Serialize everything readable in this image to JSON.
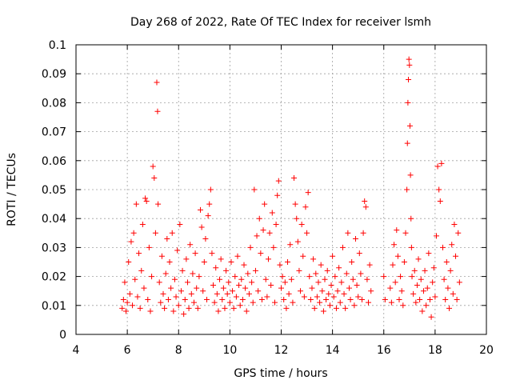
{
  "chart_data": {
    "type": "scatter",
    "title": "Day 268 of 2022, Rate Of TEC Index for receiver lsmh",
    "xlabel": "GPS time / hours",
    "ylabel": "ROTI / TECUs",
    "xlim": [
      4,
      20
    ],
    "ylim": [
      0,
      0.1
    ],
    "xticks": [
      "4",
      "6",
      "8",
      "10",
      "12",
      "14",
      "16",
      "18",
      "20"
    ],
    "yticks": [
      "0",
      "0.01",
      "0.02",
      "0.03",
      "0.04",
      "0.05",
      "0.06",
      "0.07",
      "0.08",
      "0.09",
      "0.1"
    ],
    "grid": true,
    "marker": "+",
    "color": "#ff0000",
    "series": [
      {
        "name": "ROTI",
        "points": [
          [
            5.8,
            0.009
          ],
          [
            5.85,
            0.012
          ],
          [
            5.9,
            0.018
          ],
          [
            5.95,
            0.008
          ],
          [
            6.0,
            0.011
          ],
          [
            6.05,
            0.025
          ],
          [
            6.1,
            0.014
          ],
          [
            6.15,
            0.032
          ],
          [
            6.2,
            0.01
          ],
          [
            6.25,
            0.035
          ],
          [
            6.3,
            0.019
          ],
          [
            6.35,
            0.045
          ],
          [
            6.4,
            0.013
          ],
          [
            6.45,
            0.028
          ],
          [
            6.5,
            0.009
          ],
          [
            6.55,
            0.022
          ],
          [
            6.6,
            0.038
          ],
          [
            6.65,
            0.016
          ],
          [
            6.7,
            0.047
          ],
          [
            6.75,
            0.046
          ],
          [
            6.8,
            0.012
          ],
          [
            6.85,
            0.03
          ],
          [
            6.9,
            0.008
          ],
          [
            6.95,
            0.02
          ],
          [
            7.0,
            0.058
          ],
          [
            7.05,
            0.054
          ],
          [
            7.1,
            0.035
          ],
          [
            7.15,
            0.087
          ],
          [
            7.18,
            0.077
          ],
          [
            7.2,
            0.045
          ],
          [
            7.25,
            0.018
          ],
          [
            7.3,
            0.011
          ],
          [
            7.35,
            0.027
          ],
          [
            7.4,
            0.014
          ],
          [
            7.45,
            0.009
          ],
          [
            7.5,
            0.021
          ],
          [
            7.55,
            0.033
          ],
          [
            7.6,
            0.012
          ],
          [
            7.65,
            0.025
          ],
          [
            7.7,
            0.016
          ],
          [
            7.75,
            0.035
          ],
          [
            7.8,
            0.008
          ],
          [
            7.85,
            0.019
          ],
          [
            7.9,
            0.013
          ],
          [
            7.95,
            0.029
          ],
          [
            8.0,
            0.01
          ],
          [
            8.05,
            0.038
          ],
          [
            8.1,
            0.015
          ],
          [
            8.15,
            0.022
          ],
          [
            8.2,
            0.007
          ],
          [
            8.25,
            0.012
          ],
          [
            8.3,
            0.026
          ],
          [
            8.35,
            0.018
          ],
          [
            8.4,
            0.009
          ],
          [
            8.45,
            0.031
          ],
          [
            8.5,
            0.014
          ],
          [
            8.55,
            0.021
          ],
          [
            8.6,
            0.011
          ],
          [
            8.65,
            0.028
          ],
          [
            8.7,
            0.016
          ],
          [
            8.75,
            0.009
          ],
          [
            8.8,
            0.02
          ],
          [
            8.85,
            0.043
          ],
          [
            8.9,
            0.037
          ],
          [
            8.95,
            0.015
          ],
          [
            9.0,
            0.025
          ],
          [
            9.05,
            0.033
          ],
          [
            9.1,
            0.012
          ],
          [
            9.15,
            0.041
          ],
          [
            9.2,
            0.045
          ],
          [
            9.25,
            0.05
          ],
          [
            9.3,
            0.028
          ],
          [
            9.35,
            0.017
          ],
          [
            9.4,
            0.011
          ],
          [
            9.45,
            0.023
          ],
          [
            9.5,
            0.014
          ],
          [
            9.55,
            0.008
          ],
          [
            9.6,
            0.019
          ],
          [
            9.65,
            0.026
          ],
          [
            9.7,
            0.012
          ],
          [
            9.75,
            0.016
          ],
          [
            9.8,
            0.009
          ],
          [
            9.85,
            0.022
          ],
          [
            9.9,
            0.014
          ],
          [
            9.95,
            0.018
          ],
          [
            10.0,
            0.011
          ],
          [
            10.05,
            0.025
          ],
          [
            10.1,
            0.015
          ],
          [
            10.15,
            0.009
          ],
          [
            10.2,
            0.02
          ],
          [
            10.25,
            0.013
          ],
          [
            10.3,
            0.027
          ],
          [
            10.35,
            0.017
          ],
          [
            10.4,
            0.01
          ],
          [
            10.45,
            0.019
          ],
          [
            10.5,
            0.012
          ],
          [
            10.55,
            0.024
          ],
          [
            10.6,
            0.016
          ],
          [
            10.65,
            0.008
          ],
          [
            10.7,
            0.021
          ],
          [
            10.75,
            0.014
          ],
          [
            10.8,
            0.03
          ],
          [
            10.85,
            0.018
          ],
          [
            10.9,
            0.011
          ],
          [
            10.95,
            0.05
          ],
          [
            11.0,
            0.022
          ],
          [
            11.05,
            0.034
          ],
          [
            11.1,
            0.015
          ],
          [
            11.15,
            0.04
          ],
          [
            11.2,
            0.028
          ],
          [
            11.25,
            0.012
          ],
          [
            11.3,
            0.036
          ],
          [
            11.35,
            0.045
          ],
          [
            11.4,
            0.019
          ],
          [
            11.45,
            0.013
          ],
          [
            11.5,
            0.026
          ],
          [
            11.55,
            0.035
          ],
          [
            11.6,
            0.017
          ],
          [
            11.65,
            0.042
          ],
          [
            11.7,
            0.03
          ],
          [
            11.75,
            0.011
          ],
          [
            11.8,
            0.038
          ],
          [
            11.85,
            0.048
          ],
          [
            11.9,
            0.053
          ],
          [
            11.95,
            0.024
          ],
          [
            12.0,
            0.016
          ],
          [
            12.05,
            0.02
          ],
          [
            12.1,
            0.012
          ],
          [
            12.15,
            0.018
          ],
          [
            12.2,
            0.009
          ],
          [
            12.25,
            0.025
          ],
          [
            12.3,
            0.014
          ],
          [
            12.35,
            0.031
          ],
          [
            12.4,
            0.019
          ],
          [
            12.45,
            0.011
          ],
          [
            12.5,
            0.054
          ],
          [
            12.55,
            0.045
          ],
          [
            12.6,
            0.04
          ],
          [
            12.65,
            0.032
          ],
          [
            12.7,
            0.022
          ],
          [
            12.75,
            0.015
          ],
          [
            12.8,
            0.038
          ],
          [
            12.85,
            0.027
          ],
          [
            12.9,
            0.013
          ],
          [
            12.95,
            0.044
          ],
          [
            13.0,
            0.035
          ],
          [
            13.05,
            0.049
          ],
          [
            13.1,
            0.02
          ],
          [
            13.15,
            0.012
          ],
          [
            13.2,
            0.016
          ],
          [
            13.25,
            0.026
          ],
          [
            13.3,
            0.009
          ],
          [
            13.35,
            0.021
          ],
          [
            13.4,
            0.013
          ],
          [
            13.45,
            0.018
          ],
          [
            13.5,
            0.011
          ],
          [
            13.55,
            0.024
          ],
          [
            13.6,
            0.015
          ],
          [
            13.65,
            0.008
          ],
          [
            13.7,
            0.019
          ],
          [
            13.75,
            0.012
          ],
          [
            13.8,
            0.022
          ],
          [
            13.85,
            0.014
          ],
          [
            13.9,
            0.01
          ],
          [
            13.95,
            0.017
          ],
          [
            14.0,
            0.027
          ],
          [
            14.05,
            0.013
          ],
          [
            14.1,
            0.02
          ],
          [
            14.15,
            0.009
          ],
          [
            14.2,
            0.015
          ],
          [
            14.25,
            0.023
          ],
          [
            14.3,
            0.011
          ],
          [
            14.35,
            0.018
          ],
          [
            14.4,
            0.03
          ],
          [
            14.45,
            0.014
          ],
          [
            14.5,
            0.009
          ],
          [
            14.55,
            0.021
          ],
          [
            14.6,
            0.035
          ],
          [
            14.65,
            0.016
          ],
          [
            14.7,
            0.012
          ],
          [
            14.75,
            0.025
          ],
          [
            14.8,
            0.019
          ],
          [
            14.85,
            0.01
          ],
          [
            14.9,
            0.033
          ],
          [
            14.95,
            0.017
          ],
          [
            15.0,
            0.013
          ],
          [
            15.05,
            0.028
          ],
          [
            15.1,
            0.021
          ],
          [
            15.15,
            0.012
          ],
          [
            15.2,
            0.035
          ],
          [
            15.25,
            0.046
          ],
          [
            15.3,
            0.044
          ],
          [
            15.35,
            0.019
          ],
          [
            15.4,
            0.011
          ],
          [
            15.45,
            0.024
          ],
          [
            15.5,
            0.015
          ],
          [
            16.0,
            0.02
          ],
          [
            16.05,
            0.012
          ],
          [
            16.25,
            0.016
          ],
          [
            16.3,
            0.011
          ],
          [
            16.35,
            0.024
          ],
          [
            16.4,
            0.031
          ],
          [
            16.45,
            0.018
          ],
          [
            16.5,
            0.036
          ],
          [
            16.55,
            0.027
          ],
          [
            16.6,
            0.012
          ],
          [
            16.65,
            0.02
          ],
          [
            16.7,
            0.015
          ],
          [
            16.75,
            0.01
          ],
          [
            16.8,
            0.025
          ],
          [
            16.85,
            0.035
          ],
          [
            16.9,
            0.05
          ],
          [
            16.92,
            0.066
          ],
          [
            16.94,
            0.08
          ],
          [
            16.96,
            0.088
          ],
          [
            16.98,
            0.095
          ],
          [
            17.0,
            0.093
          ],
          [
            17.02,
            0.072
          ],
          [
            17.04,
            0.055
          ],
          [
            17.06,
            0.04
          ],
          [
            17.08,
            0.03
          ],
          [
            17.1,
            0.02
          ],
          [
            17.15,
            0.014
          ],
          [
            17.2,
            0.022
          ],
          [
            17.25,
            0.011
          ],
          [
            17.3,
            0.017
          ],
          [
            17.35,
            0.026
          ],
          [
            17.4,
            0.012
          ],
          [
            17.45,
            0.019
          ],
          [
            17.5,
            0.008
          ],
          [
            17.55,
            0.015
          ],
          [
            17.6,
            0.022
          ],
          [
            17.65,
            0.01
          ],
          [
            17.7,
            0.016
          ],
          [
            17.75,
            0.028
          ],
          [
            17.8,
            0.012
          ],
          [
            17.85,
            0.006
          ],
          [
            17.9,
            0.018
          ],
          [
            17.95,
            0.023
          ],
          [
            18.0,
            0.013
          ],
          [
            18.05,
            0.034
          ],
          [
            18.1,
            0.058
          ],
          [
            18.15,
            0.05
          ],
          [
            18.2,
            0.046
          ],
          [
            18.25,
            0.059
          ],
          [
            18.3,
            0.03
          ],
          [
            18.35,
            0.019
          ],
          [
            18.4,
            0.012
          ],
          [
            18.45,
            0.025
          ],
          [
            18.5,
            0.016
          ],
          [
            18.55,
            0.009
          ],
          [
            18.6,
            0.022
          ],
          [
            18.65,
            0.031
          ],
          [
            18.7,
            0.014
          ],
          [
            18.75,
            0.038
          ],
          [
            18.8,
            0.027
          ],
          [
            18.85,
            0.012
          ],
          [
            18.9,
            0.035
          ],
          [
            18.95,
            0.018
          ]
        ]
      }
    ]
  }
}
